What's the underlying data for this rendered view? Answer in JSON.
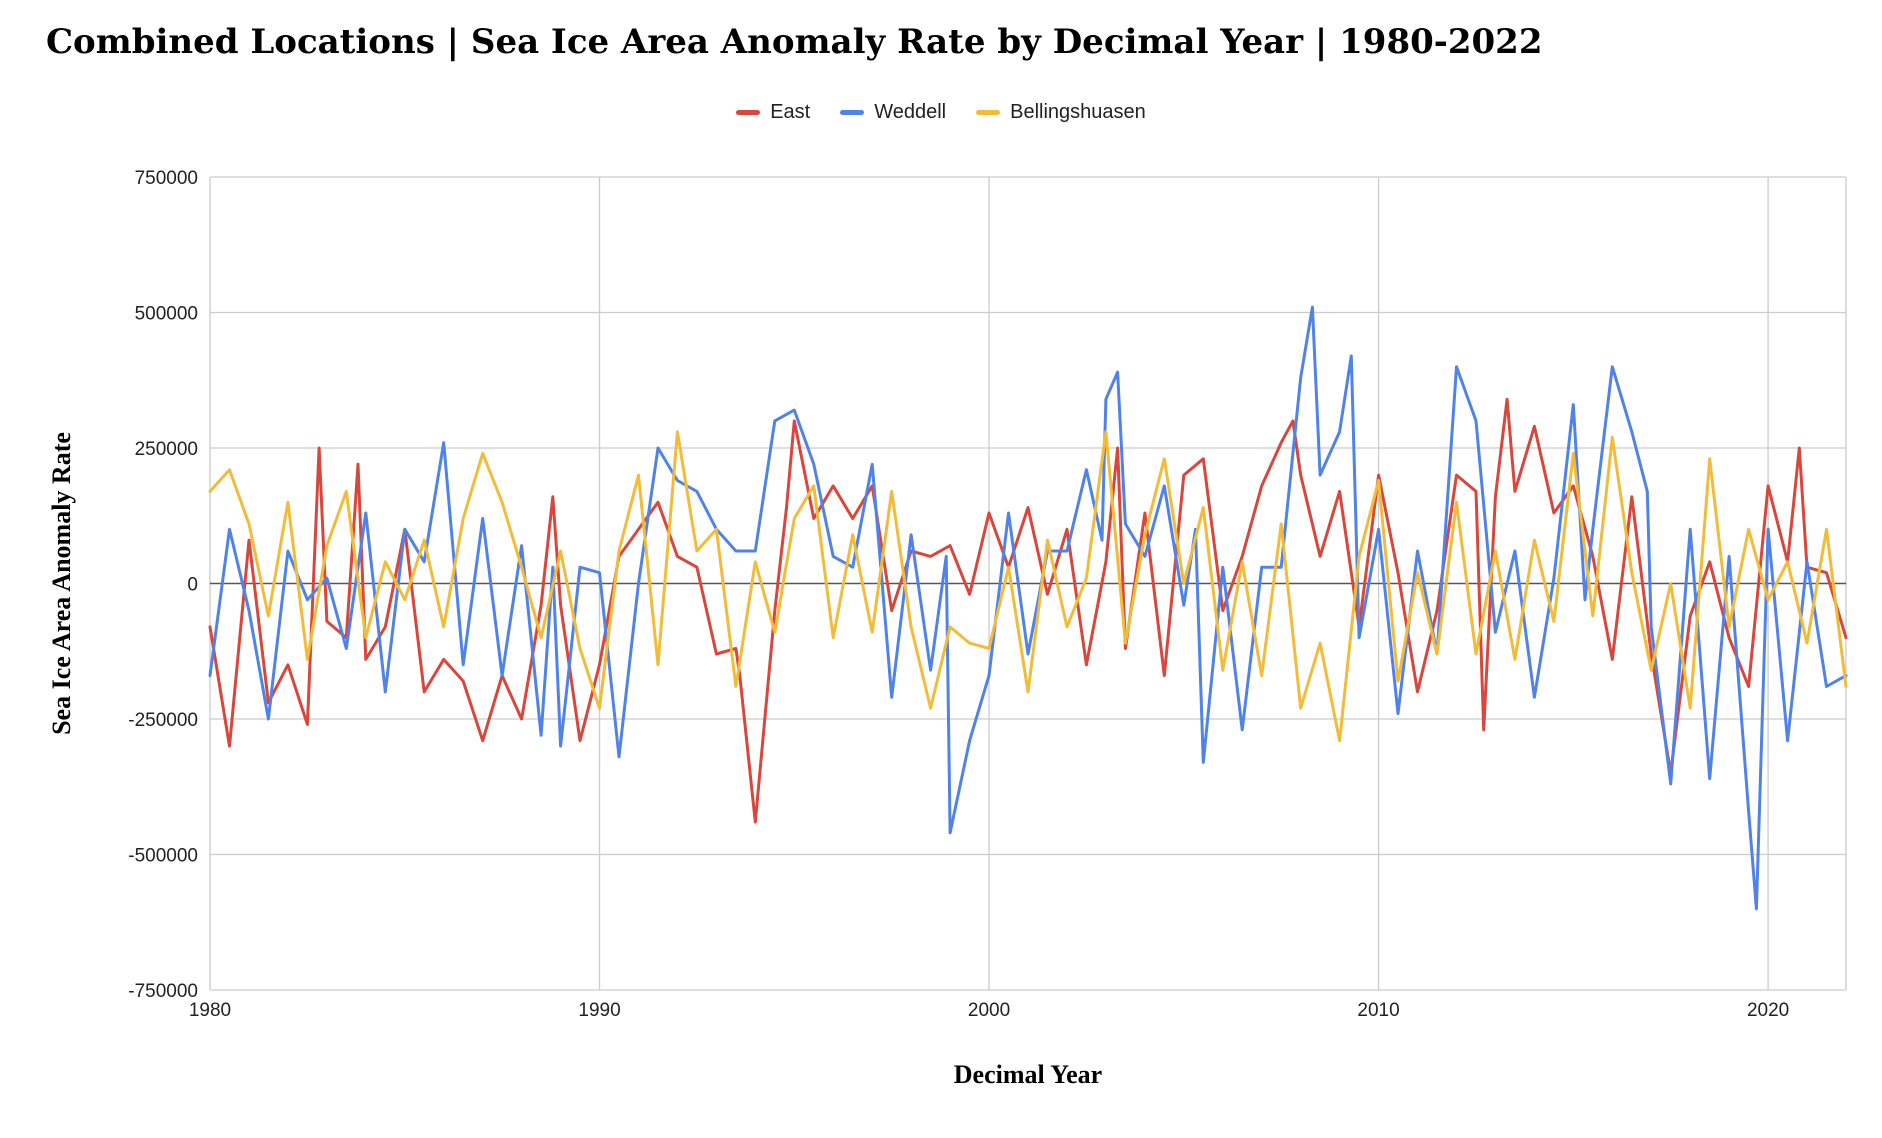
{
  "chart_data": {
    "type": "line",
    "title": "Combined Locations | Sea Ice Area Anomaly Rate by Decimal Year | 1980-2022",
    "xlabel": "Decimal Year",
    "ylabel": "Sea Ice Area Anomaly Rate",
    "xlim": [
      1980,
      2022
    ],
    "ylim": [
      -750000,
      750000
    ],
    "x_ticks": [
      1980,
      1990,
      2000,
      2010,
      2020
    ],
    "x_tick_labels": [
      "1980",
      "1990",
      "2000",
      "2010",
      "2020"
    ],
    "y_ticks": [
      750000,
      500000,
      250000,
      0,
      -250000,
      -500000,
      -750000
    ],
    "y_tick_labels": [
      "750000",
      "500000",
      "250000",
      "0",
      "-250000",
      "-500000",
      "-750000"
    ],
    "grid": true,
    "legend_position": "top-center",
    "series": [
      {
        "name": "East",
        "color": "#d9463b",
        "x": [
          1980.0,
          1980.5,
          1981.0,
          1981.5,
          1982.0,
          1982.5,
          1982.8,
          1983.0,
          1983.5,
          1983.8,
          1984.0,
          1984.5,
          1985.0,
          1985.5,
          1986.0,
          1986.5,
          1987.0,
          1987.5,
          1988.0,
          1988.5,
          1988.8,
          1989.0,
          1989.5,
          1990.0,
          1990.5,
          1991.0,
          1991.5,
          1992.0,
          1992.5,
          1993.0,
          1993.5,
          1993.6,
          1994.0,
          1994.5,
          1994.8,
          1995.0,
          1995.5,
          1996.0,
          1996.5,
          1997.0,
          1997.5,
          1998.0,
          1998.5,
          1999.0,
          1999.5,
          2000.0,
          2000.5,
          2001.0,
          2001.5,
          2002.0,
          2002.5,
          2003.0,
          2003.3,
          2003.5,
          2004.0,
          2004.5,
          2005.0,
          2005.5,
          2006.0,
          2006.5,
          2007.0,
          2007.5,
          2007.8,
          2008.0,
          2008.5,
          2009.0,
          2009.5,
          2010.0,
          2010.5,
          2011.0,
          2011.5,
          2012.0,
          2012.5,
          2012.7,
          2013.0,
          2013.3,
          2013.5,
          2014.0,
          2014.5,
          2015.0,
          2015.5,
          2016.0,
          2016.5,
          2017.0,
          2017.5,
          2018.0,
          2018.5,
          2019.0,
          2019.5,
          2020.0,
          2020.5,
          2020.8,
          2021.0,
          2021.5,
          2022.0
        ],
        "values": [
          -80000,
          -300000,
          80000,
          -220000,
          -150000,
          -260000,
          250000,
          -70000,
          -100000,
          220000,
          -140000,
          -80000,
          100000,
          -200000,
          -140000,
          -180000,
          -290000,
          -170000,
          -250000,
          -40000,
          160000,
          -40000,
          -290000,
          -150000,
          50000,
          100000,
          150000,
          50000,
          30000,
          -130000,
          -120000,
          -170000,
          -440000,
          -50000,
          140000,
          300000,
          120000,
          180000,
          120000,
          180000,
          -50000,
          60000,
          50000,
          70000,
          -20000,
          130000,
          30000,
          140000,
          -20000,
          100000,
          -150000,
          40000,
          250000,
          -120000,
          130000,
          -170000,
          200000,
          230000,
          -50000,
          50000,
          180000,
          260000,
          300000,
          200000,
          50000,
          170000,
          -80000,
          200000,
          20000,
          -200000,
          -50000,
          200000,
          170000,
          -270000,
          160000,
          340000,
          170000,
          290000,
          130000,
          180000,
          50000,
          -140000,
          160000,
          -130000,
          -350000,
          -60000,
          40000,
          -100000,
          -190000,
          180000,
          40000,
          250000,
          30000,
          20000,
          -100000
        ]
      },
      {
        "name": "Weddell",
        "color": "#4f83e8",
        "x": [
          1980.0,
          1980.5,
          1981.0,
          1981.5,
          1982.0,
          1982.5,
          1983.0,
          1983.5,
          1984.0,
          1984.5,
          1985.0,
          1985.5,
          1986.0,
          1986.5,
          1987.0,
          1987.5,
          1988.0,
          1988.5,
          1988.8,
          1989.0,
          1989.5,
          1990.0,
          1990.5,
          1991.0,
          1991.5,
          1992.0,
          1992.5,
          1993.0,
          1993.5,
          1994.0,
          1994.5,
          1995.0,
          1995.5,
          1996.0,
          1996.5,
          1997.0,
          1997.5,
          1998.0,
          1998.5,
          1998.9,
          1999.0,
          1999.5,
          2000.0,
          2000.5,
          2001.0,
          2001.5,
          2002.0,
          2002.5,
          2002.9,
          2003.0,
          2003.3,
          2003.5,
          2004.0,
          2004.5,
          2005.0,
          2005.3,
          2005.5,
          2006.0,
          2006.5,
          2007.0,
          2007.5,
          2008.0,
          2008.3,
          2008.5,
          2009.0,
          2009.3,
          2009.5,
          2010.0,
          2010.5,
          2011.0,
          2011.5,
          2012.0,
          2012.5,
          2013.0,
          2013.5,
          2014.0,
          2014.5,
          2015.0,
          2015.3,
          2015.5,
          2016.0,
          2016.5,
          2016.9,
          2017.0,
          2017.5,
          2018.0,
          2018.5,
          2019.0,
          2019.5,
          2019.7,
          2020.0,
          2020.5,
          2021.0,
          2021.5,
          2022.0
        ],
        "values": [
          -170000,
          100000,
          -50000,
          -250000,
          60000,
          -30000,
          10000,
          -120000,
          130000,
          -200000,
          100000,
          40000,
          260000,
          -150000,
          120000,
          -170000,
          70000,
          -280000,
          30000,
          -300000,
          30000,
          20000,
          -320000,
          0,
          250000,
          190000,
          170000,
          100000,
          60000,
          60000,
          300000,
          320000,
          220000,
          50000,
          30000,
          220000,
          -210000,
          90000,
          -160000,
          50000,
          -460000,
          -290000,
          -170000,
          130000,
          -130000,
          60000,
          60000,
          210000,
          80000,
          340000,
          390000,
          110000,
          50000,
          180000,
          -40000,
          100000,
          -330000,
          30000,
          -270000,
          30000,
          30000,
          380000,
          510000,
          200000,
          280000,
          420000,
          -100000,
          100000,
          -240000,
          60000,
          -130000,
          400000,
          300000,
          -90000,
          60000,
          -210000,
          10000,
          330000,
          -30000,
          100000,
          400000,
          280000,
          170000,
          -80000,
          -370000,
          100000,
          -360000,
          50000,
          -420000,
          -600000,
          100000,
          -290000,
          40000,
          -190000,
          -170000
        ]
      },
      {
        "name": "Bellingshuasen",
        "color": "#f2bc3a",
        "x": [
          1980.0,
          1980.5,
          1981.0,
          1981.5,
          1982.0,
          1982.5,
          1983.0,
          1983.5,
          1984.0,
          1984.5,
          1985.0,
          1985.5,
          1986.0,
          1986.5,
          1987.0,
          1987.5,
          1988.0,
          1988.5,
          1989.0,
          1989.5,
          1990.0,
          1990.5,
          1991.0,
          1991.5,
          1992.0,
          1992.5,
          1993.0,
          1993.5,
          1994.0,
          1994.5,
          1995.0,
          1995.5,
          1996.0,
          1996.5,
          1997.0,
          1997.5,
          1998.0,
          1998.5,
          1999.0,
          1999.5,
          2000.0,
          2000.5,
          2001.0,
          2001.5,
          2002.0,
          2002.5,
          2003.0,
          2003.5,
          2004.0,
          2004.5,
          2005.0,
          2005.5,
          2006.0,
          2006.5,
          2007.0,
          2007.5,
          2008.0,
          2008.5,
          2009.0,
          2009.5,
          2010.0,
          2010.5,
          2011.0,
          2011.5,
          2012.0,
          2012.5,
          2013.0,
          2013.5,
          2014.0,
          2014.5,
          2015.0,
          2015.5,
          2016.0,
          2016.5,
          2017.0,
          2017.5,
          2018.0,
          2018.5,
          2019.0,
          2019.5,
          2020.0,
          2020.5,
          2021.0,
          2021.5,
          2022.0
        ],
        "values": [
          170000,
          210000,
          110000,
          -60000,
          150000,
          -140000,
          70000,
          170000,
          -100000,
          40000,
          -30000,
          80000,
          -80000,
          120000,
          240000,
          150000,
          30000,
          -100000,
          60000,
          -120000,
          -230000,
          60000,
          200000,
          -150000,
          280000,
          60000,
          100000,
          -190000,
          40000,
          -90000,
          120000,
          180000,
          -100000,
          90000,
          -90000,
          170000,
          -80000,
          -230000,
          -80000,
          -110000,
          -120000,
          30000,
          -200000,
          80000,
          -80000,
          10000,
          280000,
          -110000,
          90000,
          230000,
          0,
          140000,
          -160000,
          40000,
          -170000,
          110000,
          -230000,
          -110000,
          -290000,
          50000,
          190000,
          -180000,
          20000,
          -130000,
          150000,
          -130000,
          60000,
          -140000,
          80000,
          -70000,
          240000,
          -60000,
          270000,
          20000,
          -160000,
          0,
          -230000,
          230000,
          -80000,
          100000,
          -30000,
          40000,
          -110000,
          100000,
          -190000
        ]
      }
    ]
  }
}
